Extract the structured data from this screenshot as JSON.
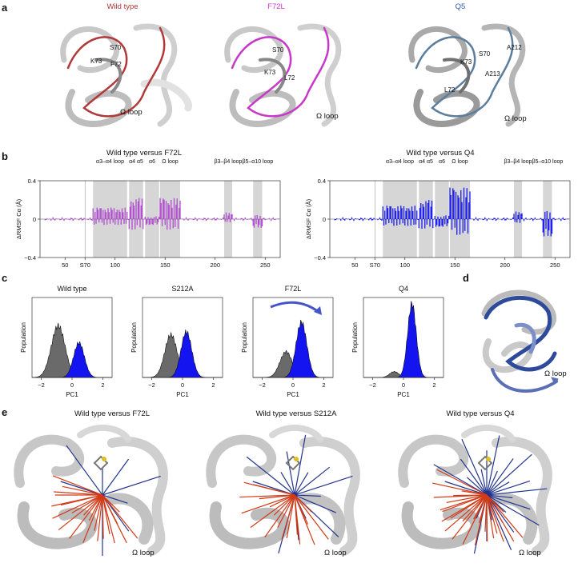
{
  "panel_labels": {
    "a": "a",
    "b": "b",
    "c": "c",
    "d": "d",
    "e": "e"
  },
  "panel_a": {
    "structures": [
      {
        "title": "Wild type",
        "color": "#b03a3a",
        "residues": [
          "S70",
          "K73",
          "F72"
        ],
        "loop": "Ω loop"
      },
      {
        "title": "F72L",
        "color": "#c838c8",
        "residues": [
          "S70",
          "K73",
          "L72"
        ],
        "loop": "Ω loop"
      },
      {
        "title": "Q5",
        "color": "#2a5aa8",
        "residues": [
          "S70",
          "K73",
          "L72",
          "A212",
          "A213"
        ],
        "loop": "Ω loop"
      }
    ]
  },
  "panel_b": {
    "ylabel": "ΔRMSF Cα (Å)",
    "ylim": [
      -0.4,
      0.4
    ],
    "yticks": [
      "0.4",
      "0",
      "−0.4"
    ],
    "xticks": [
      "50",
      "S70",
      "100",
      "150",
      "200",
      "250"
    ],
    "regions": [
      {
        "label": "α3–α4 loop",
        "x0": 78,
        "x1": 112
      },
      {
        "label": "α4 α5",
        "x0": 114,
        "x1": 128
      },
      {
        "label": "α6",
        "x0": 130,
        "x1": 144
      },
      {
        "label": "Ω loop",
        "x0": 145,
        "x1": 165
      },
      {
        "label": "β3–β4 loop",
        "x0": 209,
        "x1": 217
      },
      {
        "label": "β5–α10 loop",
        "x0": 238,
        "x1": 247
      }
    ],
    "plots": [
      {
        "title": "Wild type versus F72L",
        "color": "#b04cd0"
      },
      {
        "title": "Wild type versus Q4",
        "color": "#1a1aee"
      }
    ]
  },
  "panel_c": {
    "xlabel": "PC1",
    "ylabel": "Population",
    "xticks": [
      "−2",
      "0",
      "2"
    ],
    "plots": [
      {
        "title": "Wild type",
        "gray": {
          "mu": -0.9,
          "s": 0.45,
          "h": 0.7
        },
        "blue": {
          "mu": 0.45,
          "s": 0.35,
          "h": 0.47
        }
      },
      {
        "title": "S212A",
        "gray": {
          "mu": -0.75,
          "s": 0.4,
          "h": 0.58
        },
        "blue": {
          "mu": 0.25,
          "s": 0.35,
          "h": 0.62
        }
      },
      {
        "title": "F72L",
        "gray": {
          "mu": -0.45,
          "s": 0.4,
          "h": 0.35
        },
        "blue": {
          "mu": 0.55,
          "s": 0.35,
          "h": 0.75
        }
      },
      {
        "title": "Q4",
        "gray": {
          "mu": -0.6,
          "s": 0.3,
          "h": 0.08
        },
        "blue": {
          "mu": 0.55,
          "s": 0.28,
          "h": 1.0
        }
      }
    ]
  },
  "panel_d": {
    "loop": "Ω loop"
  },
  "panel_e": {
    "structures": [
      {
        "title": "Wild type versus F72L",
        "loop": "Ω loop"
      },
      {
        "title": "Wild type versus S212A",
        "loop": "Ω loop"
      },
      {
        "title": "Wild type versus Q4",
        "loop": "Ω loop"
      }
    ]
  },
  "colors": {
    "gray_region": "#d6d6d6",
    "pc_gray": "#6a6a6a",
    "pc_blue": "#1414f0",
    "net_red": "#d23a16",
    "net_blue": "#22358c"
  }
}
